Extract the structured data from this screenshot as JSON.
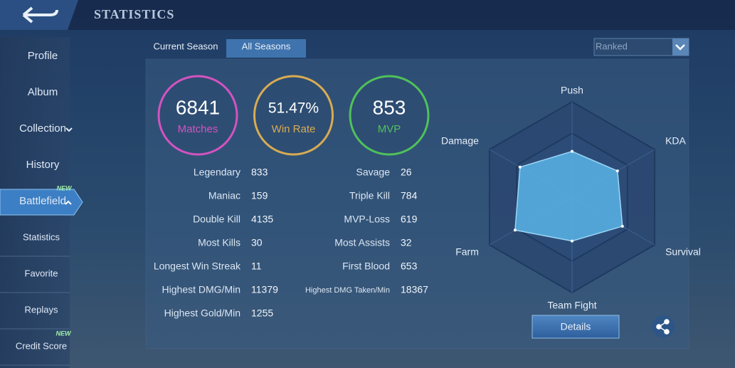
{
  "header": {
    "title": "STATISTICS"
  },
  "sidebar": {
    "items": [
      {
        "label": "Profile"
      },
      {
        "label": "Album"
      },
      {
        "label": "Collection"
      },
      {
        "label": "History"
      },
      {
        "label": "Battlefield",
        "badge": "NEW"
      },
      {
        "label": "Statistics"
      },
      {
        "label": "Favorite"
      },
      {
        "label": "Replays"
      },
      {
        "label": "Credit Score",
        "badge": "NEW"
      }
    ]
  },
  "tabs": [
    "Current Season",
    "All Seasons"
  ],
  "mode_select": "Ranked",
  "summary": [
    {
      "value": "6841",
      "label": "Matches",
      "color": "#d453c0"
    },
    {
      "value": "51.47%",
      "label": "Win Rate",
      "color": "#d9ac52"
    },
    {
      "value": "853",
      "label": "MVP",
      "color": "#4fc25a"
    }
  ],
  "stats": [
    [
      {
        "label": "Legendary",
        "value": "833"
      },
      {
        "label": "Savage",
        "value": "26"
      }
    ],
    [
      {
        "label": "Maniac",
        "value": "159"
      },
      {
        "label": "Triple Kill",
        "value": "784"
      }
    ],
    [
      {
        "label": "Double Kill",
        "value": "4135"
      },
      {
        "label": "MVP-Loss",
        "value": "619"
      }
    ],
    [
      {
        "label": "Most Kills",
        "value": "30"
      },
      {
        "label": "Most Assists",
        "value": "32"
      }
    ],
    [
      {
        "label": "Longest Win Streak",
        "value": "11"
      },
      {
        "label": "First Blood",
        "value": "653"
      }
    ],
    [
      {
        "label": "Highest DMG/Min",
        "value": "11379"
      },
      {
        "label": "Highest DMG Taken/Min",
        "value": "18367"
      }
    ],
    [
      {
        "label": "Highest Gold/Min",
        "value": "1255"
      }
    ]
  ],
  "radar": {
    "type": "radar",
    "axes": [
      "Push",
      "KDA",
      "Survival",
      "Team Fight",
      "Farm",
      "Damage"
    ],
    "values": [
      48,
      55,
      61,
      46,
      69,
      63
    ],
    "rlim": [
      0,
      100
    ],
    "color": "#5ab4e6"
  },
  "details_button": "Details"
}
